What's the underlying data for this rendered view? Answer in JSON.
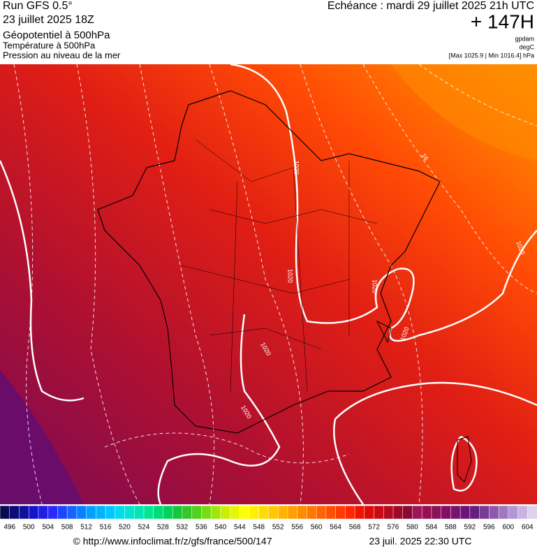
{
  "header": {
    "run": "Run GFS 0.5°",
    "run_date": "23 juillet 2025 18Z",
    "field_1": "Géopotentiel à 500hPa",
    "field_2": "Température à 500hPa",
    "field_3": "Pression au niveau de la mer",
    "echeance": "Echéance : mardi 29 juillet 2025 21h UTC",
    "lead": "+ 147H",
    "unit_1": "gpdam",
    "unit_2": "degC",
    "pressure_range": "[Max 1025.9 | Min 1016.4] hPa"
  },
  "map": {
    "contour_labels": [
      "1020",
      "1020",
      "1020",
      "1020",
      "1020",
      "1020",
      "1020",
      "16"
    ]
  },
  "colorbar": {
    "labels": [
      496,
      500,
      504,
      508,
      512,
      516,
      520,
      524,
      528,
      532,
      536,
      540,
      544,
      548,
      552,
      556,
      560,
      564,
      568,
      572,
      576,
      580,
      584,
      588,
      592,
      596,
      600,
      604
    ],
    "colors": [
      "#0a0a50",
      "#0c0c78",
      "#0f0fa0",
      "#1414c8",
      "#1e1ee6",
      "#2828ff",
      "#1e46ff",
      "#1464ff",
      "#0a82ff",
      "#00a0ff",
      "#00b4ff",
      "#00c8ff",
      "#00dcf0",
      "#00e6d2",
      "#00e6b4",
      "#00e696",
      "#00dc78",
      "#00d25a",
      "#14c83c",
      "#32c828",
      "#50d21e",
      "#78dc14",
      "#a0e60a",
      "#c8f000",
      "#e6f500",
      "#ffff00",
      "#fff000",
      "#ffdc00",
      "#ffc800",
      "#ffb400",
      "#ffa000",
      "#ff8c00",
      "#ff7800",
      "#ff6400",
      "#ff5000",
      "#ff3c00",
      "#ff2800",
      "#f01400",
      "#dc0a0a",
      "#c80a14",
      "#b40a1e",
      "#a00a28",
      "#8c0a32",
      "#a0145a",
      "#960f55",
      "#8c0f5a",
      "#820f64",
      "#78146e",
      "#6e1478",
      "#641e82",
      "#783c96",
      "#8c5aaa",
      "#a078be",
      "#b496d2",
      "#c8b4e1",
      "#dcd2eb"
    ]
  },
  "footer": {
    "url": "© http://www.infoclimat.fr/z/gfs/france/500/147",
    "timestamp": "23 juil. 2025 22:30 UTC"
  }
}
